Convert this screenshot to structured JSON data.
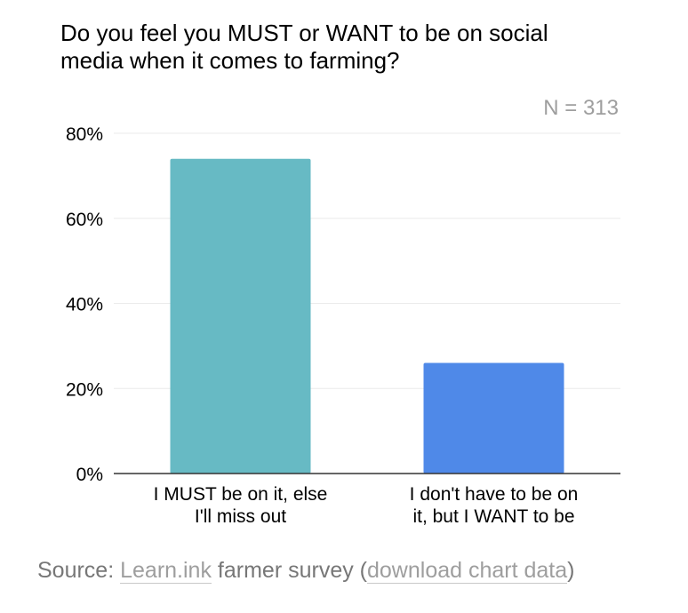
{
  "chart_data": {
    "type": "bar",
    "title_lines": [
      "Do you feel you MUST or WANT to be on social",
      "media when it comes to farming?"
    ],
    "annotation": "N = 313",
    "categories": [
      [
        "I MUST be on it, else",
        "I'll miss out"
      ],
      [
        "I don't have to be on",
        "it, but I WANT to be"
      ]
    ],
    "values": [
      74,
      26
    ],
    "bar_colors": [
      "#67bac4",
      "#4f89e8"
    ],
    "ylim": [
      0,
      80
    ],
    "yticks": [
      0,
      20,
      40,
      60,
      80
    ],
    "ytick_labels": [
      "0%",
      "20%",
      "40%",
      "60%",
      "80%"
    ],
    "grid": true,
    "legend": "none"
  },
  "source": {
    "prefix": "Source: ",
    "link1": "Learn.ink",
    "middle": " farmer survey (",
    "link2": "download chart data",
    "suffix": ")"
  }
}
